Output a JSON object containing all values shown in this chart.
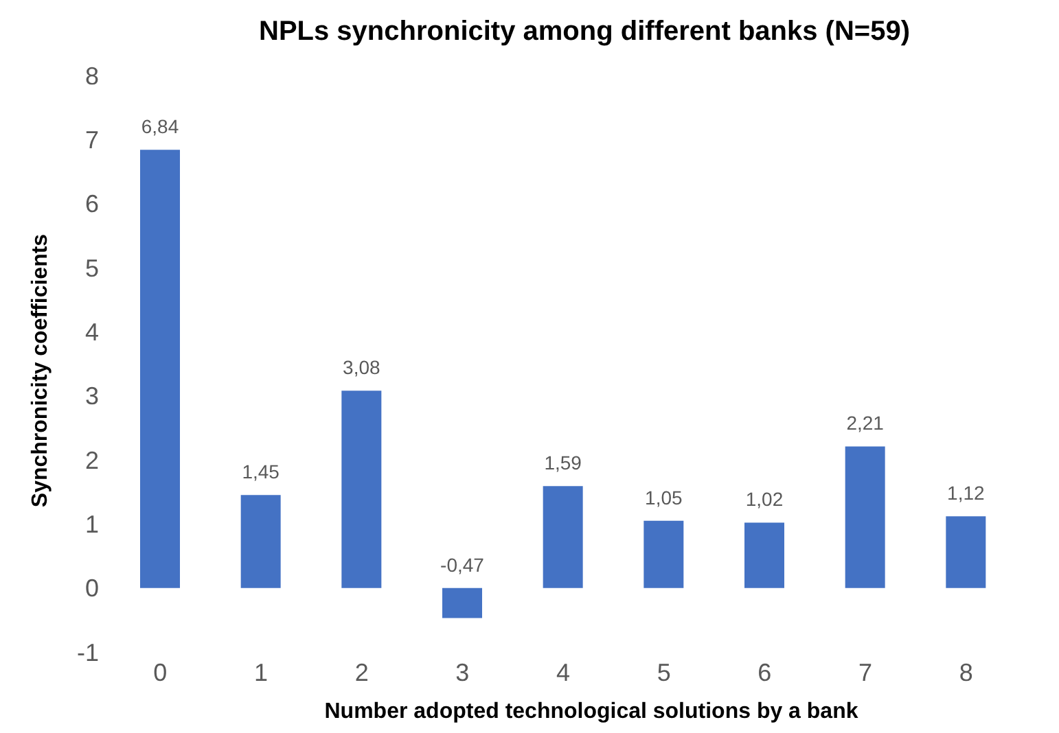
{
  "chart_data": {
    "type": "bar",
    "title": "NPLs synchronicity among different banks (N=59)",
    "xlabel": "Number adopted technological solutions by a bank",
    "ylabel": "Synchronicity coefficients",
    "categories": [
      "0",
      "1",
      "2",
      "3",
      "4",
      "5",
      "6",
      "7",
      "8"
    ],
    "values": [
      6.84,
      1.45,
      3.08,
      -0.47,
      1.59,
      1.05,
      1.02,
      2.21,
      1.12
    ],
    "value_labels": [
      "6,84",
      "1,45",
      "3,08",
      "-0,47",
      "1,59",
      "1,05",
      "1,02",
      "2,21",
      "1,12"
    ],
    "color": "#4472c4",
    "ylim": [
      -1,
      8
    ],
    "yticks": [
      -1,
      0,
      1,
      2,
      3,
      4,
      5,
      6,
      7,
      8
    ]
  }
}
